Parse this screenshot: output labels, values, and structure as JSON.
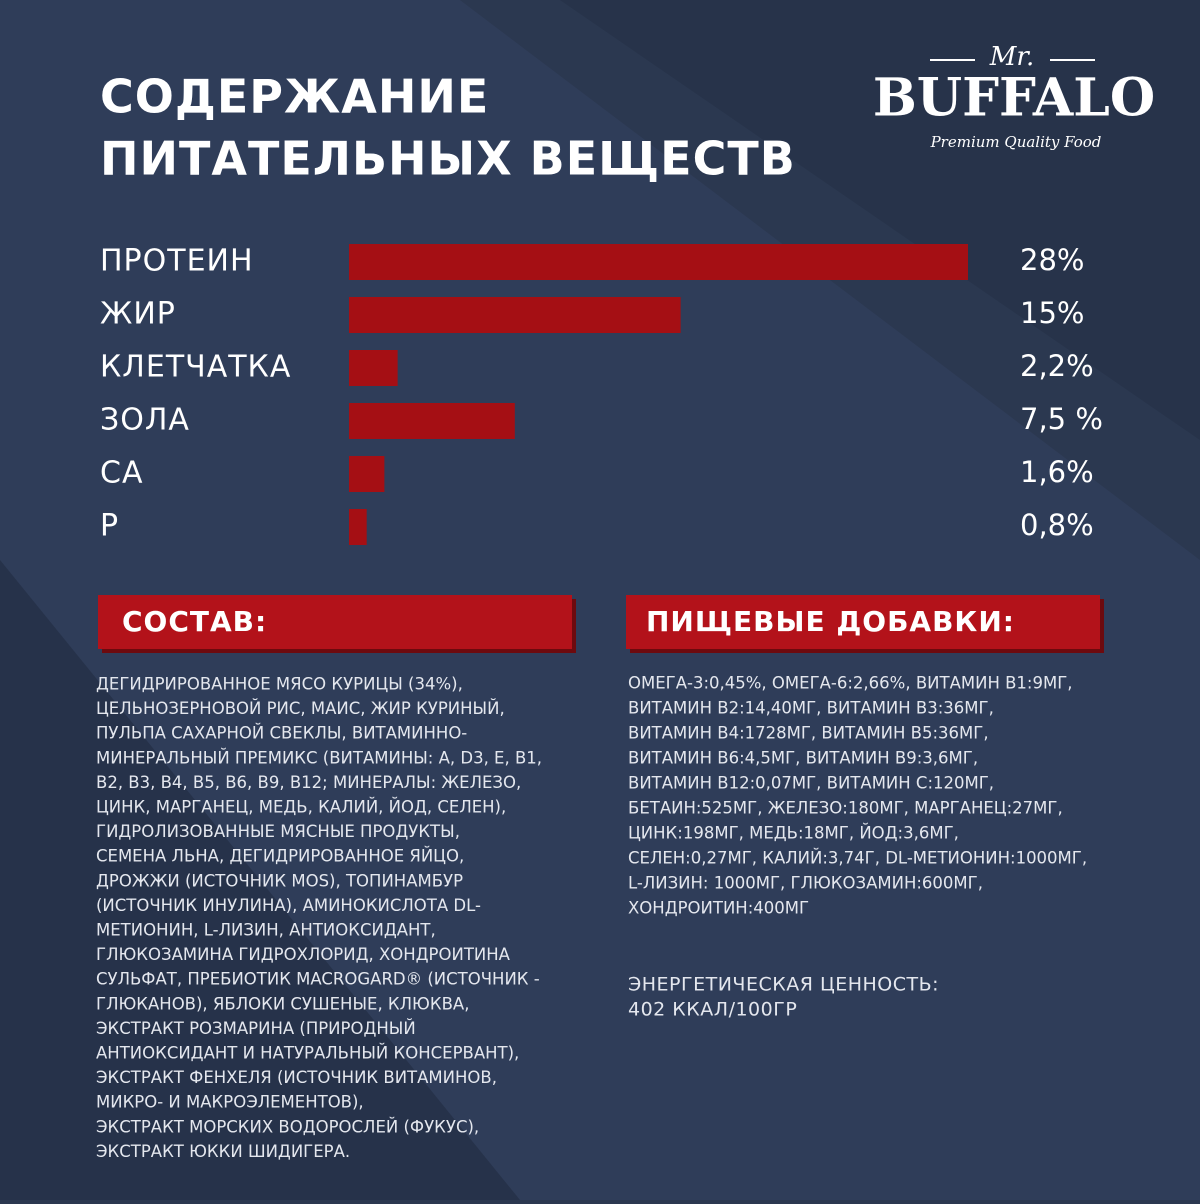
{
  "header": {
    "title_lines": [
      "СОДЕРЖАНИЕ",
      "ПИТАТЕЛЬНЫХ ВЕЩЕСТВ"
    ]
  },
  "logo": {
    "prefix": "Mr.",
    "brand": "BUFFALO",
    "tagline": "Premium Quality Food"
  },
  "chart_data": {
    "type": "bar",
    "orientation": "horizontal",
    "color": "#a50f14",
    "categories": [
      "ПРОТЕИН",
      "ЖИР",
      "КЛЕТЧАТКА",
      "ЗОЛА",
      "CA",
      "P"
    ],
    "values": [
      28,
      15,
      2.2,
      7.5,
      1.6,
      0.8
    ],
    "value_labels": [
      "28%",
      "15%",
      "2,2%",
      "7,5 %",
      "1,6%",
      "0,8%"
    ]
  },
  "composition": {
    "heading": "СОСТАВ:",
    "lines": [
      "ДЕГИДРИРОВАННОЕ МЯСО КУРИЦЫ (34%),",
      "ЦЕЛЬНОЗЕРНОВОЙ РИС, МАИС, ЖИР КУРИНЫЙ,",
      "ПУЛЬПА САХАРНОЙ СВЕКЛЫ, ВИТАМИННО-",
      "МИНЕРАЛЬНЫЙ ПРЕМИКС (ВИТАМИНЫ: A, D3, E, B1,",
      "B2, B3, B4, B5, B6, B9, B12; МИНЕРАЛЫ: ЖЕЛЕЗО,",
      "ЦИНК, МАРГАНЕЦ, МЕДЬ, КАЛИЙ, ЙОД, СЕЛЕН),",
      "ГИДРОЛИЗОВАННЫЕ МЯСНЫЕ ПРОДУКТЫ,",
      "СЕМЕНА ЛЬНА, ДЕГИДРИРОВАННОЕ ЯЙЦО,",
      "ДРОЖЖИ (ИСТОЧНИК MOS), ТОПИНАМБУР",
      "(ИСТОЧНИК ИНУЛИНА), АМИНОКИСЛОТА DL-",
      "МЕТИОНИН, L-ЛИЗИН, АНТИОКСИДАНТ,",
      "ГЛЮКОЗАМИНА ГИДРОХЛОРИД, ХОНДРОИТИНА",
      "СУЛЬФАТ, ПРЕБИОТИК MACROGARD® (ИСТОЧНИК  -",
      "ГЛЮКАНОВ), ЯБЛОКИ СУШЕНЫЕ, КЛЮКВА,",
      "ЭКСТРАКТ РОЗМАРИНА (ПРИРОДНЫЙ",
      "АНТИОКСИДАНТ И НАТУРАЛЬНЫЙ КОНСЕРВАНТ),",
      "ЭКСТРАКТ ФЕНХЕЛЯ (ИСТОЧНИК ВИТАМИНОВ,",
      "МИКРО- И МАКРОЭЛЕМЕНТОВ),",
      "ЭКСТРАКТ МОРСКИХ ВОДОРОСЛЕЙ (ФУКУС),",
      "ЭКСТРАКТ ЮККИ ШИДИГЕРА."
    ]
  },
  "additives": {
    "heading": "ПИЩЕВЫЕ ДОБАВКИ:",
    "lines": [
      "ОМЕГА-3:0,45%, ОМЕГА-6:2,66%, ВИТАМИН B1:9МГ,",
      "ВИТАМИН B2:14,40МГ, ВИТАМИН B3:36МГ,",
      "ВИТАМИН B4:1728МГ, ВИТАМИН B5:36МГ,",
      "ВИТАМИН B6:4,5МГ, ВИТАМИН B9:3,6МГ,",
      "ВИТАМИН B12:0,07МГ, ВИТАМИН C:120МГ,",
      "БЕТАИН:525МГ, ЖЕЛЕЗО:180МГ, МАРГАНЕЦ:27МГ,",
      "ЦИНК:198МГ, МЕДЬ:18МГ, ЙОД:3,6МГ,",
      "СЕЛЕН:0,27МГ, КАЛИЙ:3,74Г, DL-МЕТИОНИН:1000МГ,",
      "L-ЛИЗИН: 1000МГ, ГЛЮКОЗАМИН:600МГ,",
      "ХОНДРОИТИН:400МГ"
    ],
    "energy_lines": [
      "ЭНЕРГЕТИЧЕСКАЯ ЦЕННОСТЬ:",
      "402 ККАЛ/100ГР"
    ]
  }
}
